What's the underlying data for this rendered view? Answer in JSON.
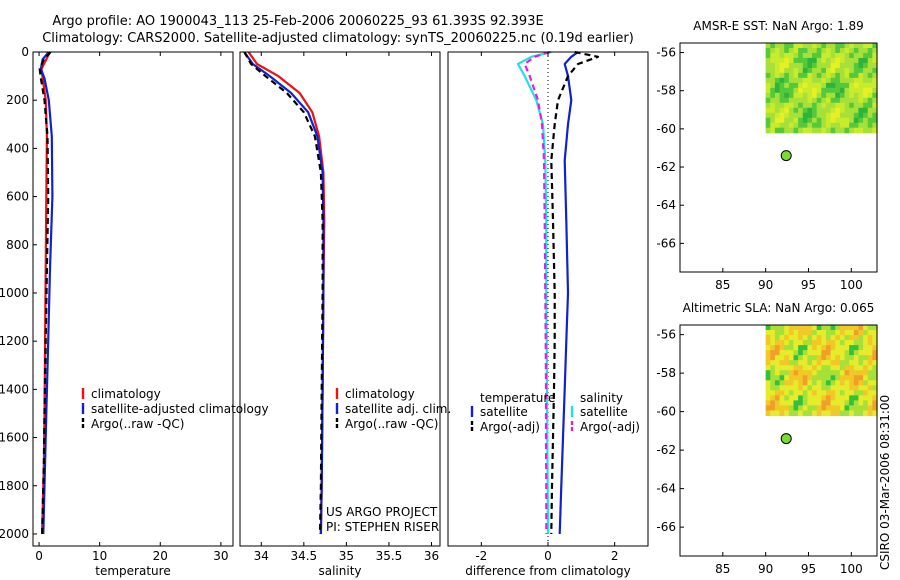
{
  "header": {
    "title_line1": "Argo profile: AO 1900043_113 25-Feb-2006 20060225_93 61.393S 92.393E",
    "title_line2": "Climatology: CARS2000. Satellite-adjusted climatology: synTS_20060225.nc (0.19d earlier)"
  },
  "footer": {
    "credit": "CSIRO 03-Mar-2006 08:31:00",
    "project_line1": "US ARGO PROJECT",
    "project_line2": "PI: STEPHEN RISER"
  },
  "colors": {
    "red": "#ee1111",
    "blue": "#1122cc",
    "black": "#000000",
    "cyan": "#22e0e8",
    "magenta": "#e020e0",
    "dot": "#77dd33"
  },
  "chart_data": [
    {
      "id": "temperature",
      "type": "line",
      "xlabel": "temperature",
      "ylabel": "",
      "xlim": [
        -1,
        32
      ],
      "ylim": [
        0,
        2050
      ],
      "y_inverted": true,
      "xticks": [
        0,
        10,
        20,
        30
      ],
      "xtick_labels": [
        "0",
        "10",
        "20",
        "30"
      ],
      "yticks": [
        0,
        200,
        400,
        600,
        800,
        1000,
        1200,
        1400,
        1600,
        1800,
        2000
      ],
      "ytick_labels": [
        "0",
        "200",
        "400",
        "600",
        "800",
        "1000",
        "1200",
        "1400",
        "1600",
        "1800",
        "2000"
      ],
      "legend": [
        {
          "label": "climatology",
          "color": "#ee1111",
          "dash": ""
        },
        {
          "label": "satellite-adjusted climatology",
          "color": "#1122cc",
          "dash": ""
        },
        {
          "label": "Argo(..raw -QC)",
          "color": "#000000",
          "dash": "6,4"
        }
      ],
      "series": [
        {
          "name": "climatology",
          "color": "#ee1111",
          "dash": "",
          "x": [
            1.8,
            1.2,
            0.4,
            0.6,
            1.1,
            1.3,
            1.2,
            1.1,
            1.0,
            0.9,
            0.8,
            0.6,
            0.5
          ],
          "y": [
            0,
            30,
            70,
            110,
            200,
            350,
            600,
            900,
            1200,
            1500,
            1700,
            1900,
            2000
          ]
        },
        {
          "name": "satellite-adjusted climatology",
          "color": "#1122cc",
          "dash": "",
          "x": [
            1.6,
            0.6,
            0.3,
            0.9,
            1.6,
            2.1,
            2.2,
            1.8,
            1.5,
            1.2,
            1.0,
            0.8,
            0.7
          ],
          "y": [
            0,
            30,
            70,
            110,
            200,
            350,
            600,
            900,
            1200,
            1500,
            1700,
            1900,
            2000
          ]
        },
        {
          "name": "Argo(..raw -QC)",
          "color": "#000000",
          "dash": "6,4",
          "x": [
            1.9,
            0.8,
            0.1,
            0.3,
            0.9,
            1.4,
            1.5,
            1.3,
            1.1,
            0.9,
            0.8,
            0.6,
            0.5
          ],
          "y": [
            0,
            30,
            70,
            110,
            200,
            350,
            600,
            900,
            1200,
            1500,
            1700,
            1900,
            2000
          ]
        }
      ]
    },
    {
      "id": "salinity",
      "type": "line",
      "xlabel": "salinity",
      "ylabel": "",
      "xlim": [
        33.75,
        36.1
      ],
      "ylim": [
        0,
        2050
      ],
      "y_inverted": true,
      "xticks": [
        34,
        34.5,
        35,
        35.5,
        36
      ],
      "xtick_labels": [
        "34",
        "34.5",
        "35",
        "35.5",
        "36"
      ],
      "legend": [
        {
          "label": "climatology",
          "color": "#ee1111",
          "dash": ""
        },
        {
          "label": "satellite adj. clim.",
          "color": "#1122cc",
          "dash": ""
        },
        {
          "label": "Argo(..raw -QC)",
          "color": "#000000",
          "dash": "6,4"
        }
      ],
      "series": [
        {
          "name": "climatology",
          "color": "#ee1111",
          "dash": "",
          "x": [
            33.85,
            33.95,
            34.2,
            34.45,
            34.6,
            34.68,
            34.73,
            34.74,
            34.73,
            34.72,
            34.71,
            34.7
          ],
          "y": [
            0,
            50,
            100,
            170,
            250,
            350,
            500,
            700,
            1000,
            1400,
            1800,
            2000
          ]
        },
        {
          "name": "satellite adj. clim.",
          "color": "#1122cc",
          "dash": "",
          "x": [
            33.8,
            33.9,
            34.1,
            34.35,
            34.55,
            34.66,
            34.72,
            34.73,
            34.73,
            34.72,
            34.71,
            34.7
          ],
          "y": [
            0,
            50,
            100,
            170,
            250,
            350,
            500,
            700,
            1000,
            1400,
            1800,
            2000
          ]
        },
        {
          "name": "Argo(..raw -QC)",
          "color": "#000000",
          "dash": "6,4",
          "x": [
            33.8,
            33.88,
            34.05,
            34.3,
            34.5,
            34.63,
            34.7,
            34.72,
            34.72,
            34.71,
            34.7,
            34.69
          ],
          "y": [
            0,
            50,
            100,
            170,
            250,
            350,
            500,
            700,
            1000,
            1400,
            1800,
            2000
          ]
        }
      ]
    },
    {
      "id": "difference",
      "type": "line",
      "xlabel": "difference from climatology",
      "ylabel": "",
      "xlim": [
        -3,
        3
      ],
      "ylim": [
        0,
        2050
      ],
      "y_inverted": true,
      "xticks": [
        -2,
        0,
        2
      ],
      "xtick_labels": [
        "-2",
        "0",
        "2"
      ],
      "legend_headers": [
        "temperature",
        "salinity"
      ],
      "legend": [
        {
          "label": "satellite",
          "color": "#1122cc",
          "dash": "",
          "group": "temperature"
        },
        {
          "label": "Argo(-adj)",
          "color": "#000000",
          "dash": "6,4",
          "group": "temperature"
        },
        {
          "label": "satellite",
          "color": "#22e0e8",
          "dash": "",
          "group": "salinity"
        },
        {
          "label": "Argo(-adj)",
          "color": "#e020e0",
          "dash": "6,4",
          "group": "salinity"
        }
      ],
      "reference_x": 0,
      "series": [
        {
          "name": "temperature satellite",
          "color": "#1122cc",
          "dash": "",
          "x": [
            0.9,
            0.7,
            0.5,
            0.6,
            0.7,
            0.6,
            0.5,
            0.55,
            0.6,
            0.55,
            0.5,
            0.45,
            0.4,
            0.35
          ],
          "y": [
            0,
            20,
            50,
            100,
            200,
            300,
            450,
            700,
            1000,
            1200,
            1400,
            1600,
            1800,
            2000
          ]
        },
        {
          "name": "temperature Argo(-adj)",
          "color": "#000000",
          "dash": "6,4",
          "x": [
            0.8,
            1.5,
            0.9,
            0.6,
            0.3,
            0.2,
            0.1,
            0.15,
            0.2,
            0.2,
            0.18,
            0.15,
            0.12,
            0.1
          ],
          "y": [
            0,
            20,
            50,
            100,
            200,
            300,
            450,
            700,
            1000,
            1200,
            1400,
            1600,
            1800,
            2000
          ]
        },
        {
          "name": "salinity satellite",
          "color": "#22e0e8",
          "dash": "",
          "x": [
            0.1,
            -0.5,
            -0.9,
            -0.7,
            -0.35,
            -0.15,
            -0.08,
            -0.05,
            -0.05,
            -0.04,
            -0.03,
            -0.02,
            -0.01,
            0
          ],
          "y": [
            0,
            20,
            50,
            100,
            200,
            300,
            450,
            700,
            1000,
            1200,
            1400,
            1600,
            1800,
            2000
          ]
        },
        {
          "name": "salinity Argo(-adj)",
          "color": "#e020e0",
          "dash": "6,4",
          "x": [
            0.05,
            -0.4,
            -0.7,
            -0.55,
            -0.3,
            -0.18,
            -0.12,
            -0.1,
            -0.08,
            -0.07,
            -0.06,
            -0.06,
            -0.05,
            -0.05
          ],
          "y": [
            0,
            20,
            50,
            100,
            200,
            300,
            450,
            700,
            1000,
            1200,
            1400,
            1600,
            1800,
            2000
          ]
        }
      ]
    },
    {
      "id": "sst-map",
      "type": "heatmap",
      "title": "AMSR-E SST: NaN Argo: 1.89",
      "xlim": [
        80,
        103
      ],
      "ylim": [
        -67.5,
        -55.5
      ],
      "xticks": [
        85,
        90,
        95,
        100
      ],
      "xtick_labels": [
        "85",
        "90",
        "95",
        "100"
      ],
      "yticks": [
        -56,
        -58,
        -60,
        -62,
        -64,
        -66
      ],
      "ytick_labels": [
        "-56",
        "-58",
        "-60",
        "-62",
        "-64",
        "-66"
      ],
      "field_extent": {
        "lon": [
          90,
          103
        ],
        "lat": [
          -60.2,
          -55.5
        ]
      },
      "field_palette": [
        "#e6f024",
        "#c8ec2c",
        "#a8e03a",
        "#55c83c",
        "#2fb43a"
      ],
      "argo_point": {
        "lon": 92.4,
        "lat": -61.4
      }
    },
    {
      "id": "sla-map",
      "type": "heatmap",
      "title": "Altimetric SLA: NaN Argo: 0.065",
      "xlim": [
        80,
        103
      ],
      "ylim": [
        -67.5,
        -55.5
      ],
      "xticks": [
        85,
        90,
        95,
        100
      ],
      "xtick_labels": [
        "85",
        "90",
        "95",
        "100"
      ],
      "yticks": [
        -56,
        -58,
        -60,
        -62,
        -64,
        -66
      ],
      "ytick_labels": [
        "-56",
        "-58",
        "-60",
        "-62",
        "-64",
        "-66"
      ],
      "field_extent": {
        "lon": [
          90,
          103
        ],
        "lat": [
          -60.2,
          -55.5
        ]
      },
      "field_palette": [
        "#f0a028",
        "#f0c828",
        "#e6ec2c",
        "#a8e03a",
        "#35c03a"
      ],
      "argo_point": {
        "lon": 92.4,
        "lat": -61.4
      }
    }
  ]
}
